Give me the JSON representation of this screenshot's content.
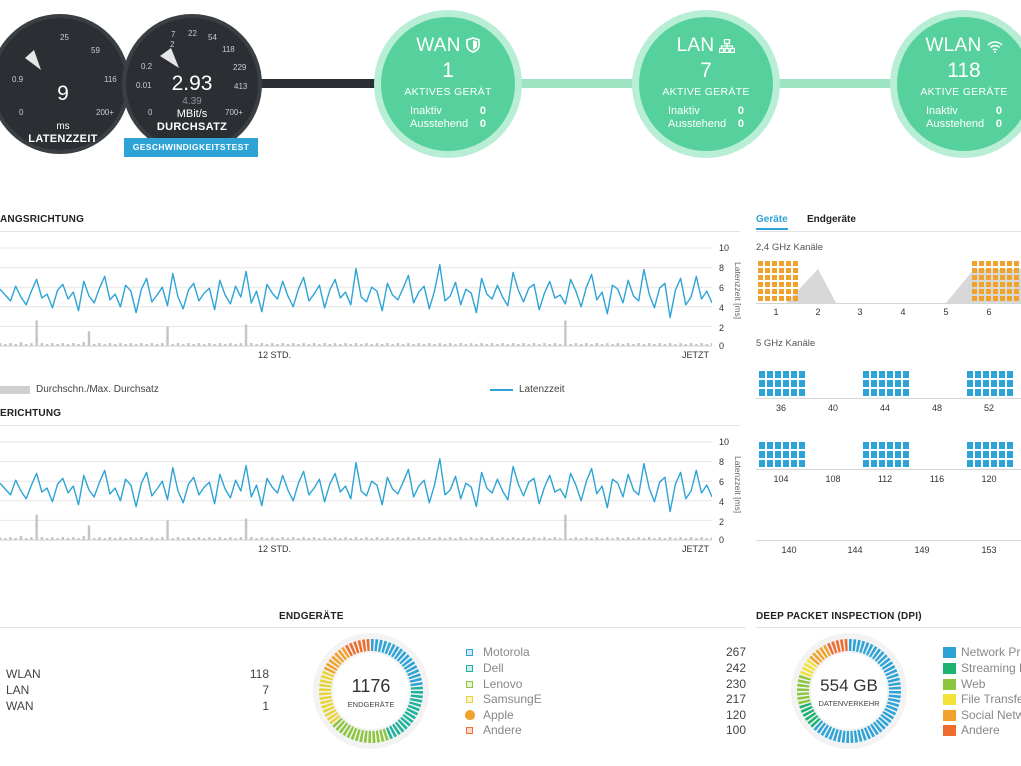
{
  "topology": {
    "latency": {
      "value": "9",
      "unit": "ms",
      "label": "LATENZZEIT",
      "ticks": [
        "25",
        "59",
        "0.9",
        "116",
        "0",
        "200+"
      ]
    },
    "throughput": {
      "value": "2.93",
      "secondary": "4.39",
      "unit": "MBit/s",
      "label": "DURCHSATZ",
      "ticks": [
        "2",
        "7",
        "22",
        "54",
        "118",
        "0.2",
        "229",
        "0.01",
        "413",
        "0",
        "700+"
      ]
    },
    "speedtest_label": "GESCHWINDIGKEITSTEST",
    "nodes": [
      {
        "title": "WAN",
        "count": "1",
        "label": "AKTIVES GERÄT",
        "inactive_label": "Inaktiv",
        "inactive": "0",
        "pending_label": "Ausstehend",
        "pending": "0"
      },
      {
        "title": "LAN",
        "count": "7",
        "label": "AKTIVE GERÄTE",
        "inactive_label": "Inaktiv",
        "inactive": "0",
        "pending_label": "Ausstehend",
        "pending": "0"
      },
      {
        "title": "WLAN",
        "count": "118",
        "label": "AKTIVE GERÄTE",
        "inactive_label": "Inaktiv",
        "inactive": "0",
        "pending_label": "Ausstehend",
        "pending": "0"
      }
    ],
    "colors": {
      "node": "#56d19d",
      "node_ring": "#b8eed5",
      "dark": "#2b2f33",
      "accent": "#2ea3d6"
    }
  },
  "charts": {
    "download_title": "ANGSRICHTUNG",
    "upload_title": "ERICHTUNG",
    "y_ticks": [
      "10",
      "8",
      "6",
      "4",
      "2",
      "0"
    ],
    "y_axis_title": "Latenzzeit [ms]",
    "x_mid": "12 STD.",
    "x_end": "JETZT",
    "legend_throughput": "Durchschn./Max. Durchsatz",
    "legend_latency": "Latenzzeit"
  },
  "chart_data": [
    {
      "type": "line",
      "title": "ANGSRICHTUNG",
      "ylabel": "Latenzzeit [ms]",
      "ylim": [
        0,
        10
      ],
      "x_labels": [
        "12 STD.",
        "JETZT"
      ],
      "series": [
        {
          "name": "Latenzzeit",
          "values": [
            5.8,
            5.2,
            4.6,
            6.1,
            5.0,
            4.2,
            5.6,
            6.8,
            4.9,
            5.3,
            3.9,
            5.7,
            6.3,
            4.8,
            5.5,
            3.6,
            6.6,
            5.1,
            4.4,
            5.9,
            7.1,
            4.7,
            5.3,
            4.0,
            6.2,
            5.6,
            3.4,
            5.8,
            6.9,
            4.5,
            5.2,
            6.0,
            4.1,
            7.4,
            5.0,
            3.8,
            5.7,
            6.4,
            4.6,
            5.4,
            5.9,
            3.7,
            6.7,
            5.2,
            4.3,
            6.1,
            5.0,
            7.6,
            4.4,
            5.6,
            3.5,
            6.3,
            5.4,
            4.8,
            6.6,
            5.1,
            4.0,
            5.8,
            7.0,
            4.6,
            5.3,
            6.2,
            3.9,
            5.7,
            6.8,
            4.9,
            5.5,
            4.2,
            7.9,
            5.0,
            4.5,
            6.0,
            5.6,
            3.6,
            6.4,
            5.2,
            4.7,
            5.9,
            7.2,
            4.4,
            5.5,
            6.1,
            3.8,
            5.6,
            8.3,
            4.6,
            5.1,
            6.5,
            4.2,
            5.8,
            5.4,
            3.4,
            6.9,
            5.3,
            4.8,
            6.2,
            5.0,
            4.1,
            7.5,
            5.7,
            4.5,
            5.9,
            6.3,
            3.7,
            5.4,
            6.6,
            4.9,
            5.2,
            4.3,
            6.8,
            5.6,
            4.0,
            6.0,
            7.3,
            4.7,
            5.5,
            3.3,
            6.2,
            5.8,
            4.4,
            6.7,
            5.1,
            4.6,
            7.8,
            5.3,
            3.9,
            5.9,
            6.4,
            2.9,
            5.7,
            6.9,
            4.2,
            5.0,
            7.1,
            4.8,
            5.6,
            4.4
          ]
        },
        {
          "name": "Durchschn./Max. Durchsatz",
          "values": [
            0.3,
            0.2,
            0.3,
            0.2,
            0.4,
            0.2,
            0.3,
            2.6,
            0.3,
            0.2,
            0.3,
            0.2,
            0.3,
            0.2,
            0.3,
            0.2,
            0.4,
            1.5,
            0.2,
            0.3,
            0.2,
            0.3,
            0.2,
            0.3,
            0.2,
            0.3,
            0.2,
            0.3,
            0.2,
            0.3,
            0.2,
            0.3,
            2.0,
            0.2,
            0.3,
            0.2,
            0.3,
            0.2,
            0.3,
            0.2,
            0.3,
            0.2,
            0.3,
            0.2,
            0.3,
            0.2,
            0.3,
            2.2,
            0.3,
            0.2,
            0.3,
            0.2,
            0.3,
            0.2,
            0.3,
            0.2,
            0.3,
            0.2,
            0.3,
            0.2,
            0.3,
            0.2,
            0.3,
            0.2,
            0.3,
            0.2,
            0.3,
            0.2,
            0.3,
            0.2,
            0.3,
            0.2,
            0.3,
            0.2,
            0.3,
            0.2,
            0.3,
            0.2,
            0.3,
            0.2,
            0.3,
            0.2,
            0.3,
            0.2,
            0.3,
            0.2,
            0.3,
            0.2,
            0.3,
            0.2,
            0.3,
            0.2,
            0.3,
            0.2,
            0.3,
            0.2,
            0.3,
            0.2,
            0.3,
            0.2,
            0.3,
            0.2,
            0.3,
            0.2,
            0.3,
            0.2,
            0.3,
            0.2,
            2.6,
            0.2,
            0.3,
            0.2,
            0.3,
            0.2,
            0.3,
            0.2,
            0.3,
            0.2,
            0.3,
            0.2,
            0.3,
            0.2,
            0.3,
            0.2,
            0.3,
            0.2,
            0.3,
            0.2,
            0.3,
            0.2,
            0.3,
            0.2,
            0.3,
            0.2,
            0.3,
            0.2,
            0.3
          ]
        }
      ]
    },
    {
      "type": "line",
      "title": "ERICHTUNG",
      "ylabel": "Latenzzeit [ms]",
      "ylim": [
        0,
        10
      ],
      "x_labels": [
        "12 STD.",
        "JETZT"
      ],
      "series": [
        {
          "name": "Latenzzeit",
          "values": [
            5.8,
            5.2,
            4.6,
            6.1,
            5.0,
            4.2,
            5.6,
            6.8,
            4.9,
            5.3,
            3.9,
            5.7,
            6.3,
            4.8,
            5.5,
            3.6,
            6.6,
            5.1,
            4.4,
            5.9,
            7.1,
            4.7,
            5.3,
            4.0,
            6.2,
            5.6,
            3.4,
            5.8,
            6.9,
            4.5,
            5.2,
            6.0,
            4.1,
            7.4,
            5.0,
            3.8,
            5.7,
            6.4,
            4.6,
            5.4,
            5.9,
            3.7,
            6.7,
            5.2,
            4.3,
            6.1,
            5.0,
            7.6,
            4.4,
            5.6,
            3.5,
            6.3,
            5.4,
            4.8,
            6.6,
            5.1,
            4.0,
            5.8,
            7.0,
            4.6,
            5.3,
            6.2,
            3.9,
            5.7,
            6.8,
            4.9,
            5.5,
            4.2,
            7.9,
            5.0,
            4.5,
            6.0,
            5.6,
            3.6,
            6.4,
            5.2,
            4.7,
            5.9,
            7.2,
            4.4,
            5.5,
            6.1,
            3.8,
            5.6,
            8.3,
            4.6,
            5.1,
            6.5,
            4.2,
            5.8,
            5.4,
            3.4,
            6.9,
            5.3,
            4.8,
            6.2,
            5.0,
            4.1,
            7.5,
            5.7,
            4.5,
            5.9,
            6.3,
            3.7,
            5.4,
            6.6,
            4.9,
            5.2,
            4.3,
            6.8,
            5.6,
            4.0,
            6.0,
            7.3,
            4.7,
            5.5,
            3.3,
            6.2,
            5.8,
            4.4,
            6.7,
            5.1,
            4.6,
            7.8,
            5.3,
            3.9,
            5.9,
            6.4,
            2.9,
            5.7,
            6.9,
            4.2,
            5.0,
            7.1,
            4.8,
            5.6,
            4.4
          ]
        },
        {
          "name": "Durchschn./Max. Durchsatz",
          "values": [
            0.3,
            0.2,
            0.3,
            0.2,
            0.4,
            0.2,
            0.3,
            2.6,
            0.3,
            0.2,
            0.3,
            0.2,
            0.3,
            0.2,
            0.3,
            0.2,
            0.4,
            1.5,
            0.2,
            0.3,
            0.2,
            0.3,
            0.2,
            0.3,
            0.2,
            0.3,
            0.2,
            0.3,
            0.2,
            0.3,
            0.2,
            0.3,
            2.0,
            0.2,
            0.3,
            0.2,
            0.3,
            0.2,
            0.3,
            0.2,
            0.3,
            0.2,
            0.3,
            0.2,
            0.3,
            0.2,
            0.3,
            2.2,
            0.3,
            0.2,
            0.3,
            0.2,
            0.3,
            0.2,
            0.3,
            0.2,
            0.3,
            0.2,
            0.3,
            0.2,
            0.3,
            0.2,
            0.3,
            0.2,
            0.3,
            0.2,
            0.3,
            0.2,
            0.3,
            0.2,
            0.3,
            0.2,
            0.3,
            0.2,
            0.3,
            0.2,
            0.3,
            0.2,
            0.3,
            0.2,
            0.3,
            0.2,
            0.3,
            0.2,
            0.3,
            0.2,
            0.3,
            0.2,
            0.3,
            0.2,
            0.3,
            0.2,
            0.3,
            0.2,
            0.3,
            0.2,
            0.3,
            0.2,
            0.3,
            0.2,
            0.3,
            0.2,
            0.3,
            0.2,
            0.3,
            0.2,
            0.3,
            0.2,
            2.6,
            0.2,
            0.3,
            0.2,
            0.3,
            0.2,
            0.3,
            0.2,
            0.3,
            0.2,
            0.3,
            0.2,
            0.3,
            0.2,
            0.3,
            0.2,
            0.3,
            0.2,
            0.3,
            0.2,
            0.3,
            0.2,
            0.3,
            0.2,
            0.3,
            0.2,
            0.3,
            0.2,
            0.3
          ]
        }
      ]
    }
  ],
  "channels": {
    "tab_devices": "Geräte",
    "tab_clients": "Endgeräte",
    "band_24": "2,4 GHz Kanäle",
    "band_5": "5 GHz Kanäle",
    "row_24": [
      "1",
      "2",
      "3",
      "4",
      "5",
      "6"
    ],
    "row_5a": [
      "36",
      "40",
      "44",
      "48",
      "52"
    ],
    "row_5b": [
      "104",
      "108",
      "112",
      "116",
      "120"
    ],
    "row_5c": [
      "140",
      "144",
      "149",
      "153"
    ],
    "colors": {
      "band24": "#f0a22c",
      "band5": "#2ea3d6"
    }
  },
  "clients": {
    "title": "ENDGERÄTE",
    "rows": [
      {
        "label": "WLAN",
        "value": "118"
      },
      {
        "label": "LAN",
        "value": "7"
      },
      {
        "label": "WAN",
        "value": "1"
      }
    ],
    "total": "1176",
    "total_label": "ENDGERÄTE",
    "brands": [
      {
        "name": "Motorola",
        "value": "267",
        "color": "#2ea3d6"
      },
      {
        "name": "Dell",
        "value": "242",
        "color": "#1fb39b"
      },
      {
        "name": "Lenovo",
        "value": "230",
        "color": "#8cc63f"
      },
      {
        "name": "SamsungE",
        "value": "217",
        "color": "#e8d43a"
      },
      {
        "name": "Apple",
        "value": "120",
        "color": "#f0a22c"
      },
      {
        "name": "Andere",
        "value": "100",
        "color": "#ef6b2e"
      }
    ]
  },
  "dpi": {
    "title": "DEEP PACKET INSPECTION (DPI)",
    "total": "554 GB",
    "total_label": "DATENVERKEHR",
    "categories": [
      {
        "name": "Network Pr",
        "color": "#2ea3d6"
      },
      {
        "name": "Streaming M",
        "color": "#1fb373"
      },
      {
        "name": "Web",
        "color": "#8cc63f"
      },
      {
        "name": "File Transfe",
        "color": "#f2e23a"
      },
      {
        "name": "Social Netw",
        "color": "#f0a22c"
      },
      {
        "name": "Andere",
        "color": "#ef6b2e"
      }
    ]
  }
}
